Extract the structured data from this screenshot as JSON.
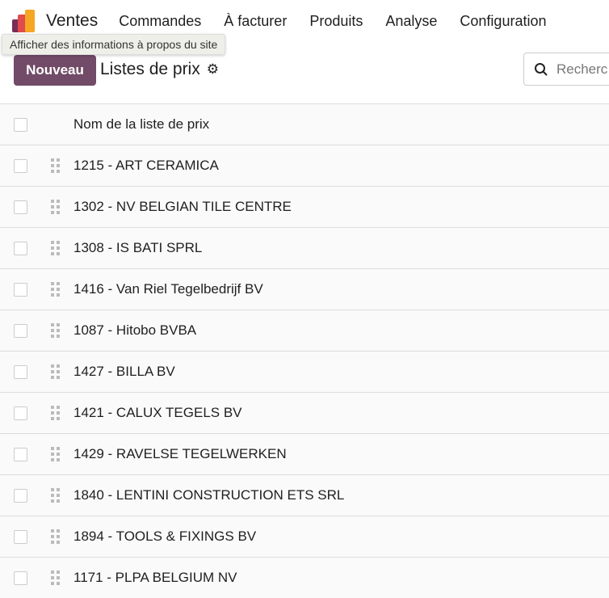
{
  "nav": {
    "app": "Ventes",
    "items": [
      "Commandes",
      "À facturer",
      "Produits",
      "Analyse",
      "Configuration"
    ],
    "logo_colors": [
      "#7a2d57",
      "#e14b4b",
      "#f5a623"
    ]
  },
  "tooltip": "Afficher des informations à propos du site",
  "control": {
    "new_label": "Nouveau",
    "title": "Listes de prix",
    "search_placeholder": "Recherc"
  },
  "list": {
    "column": "Nom de la liste de prix",
    "rows": [
      "1215 - ART CERAMICA",
      "1302 - NV BELGIAN TILE CENTRE",
      "1308 - IS BATI SPRL",
      "1416 - Van Riel Tegelbedrijf BV",
      "1087 - Hitobo BVBA",
      "1427 - BILLA BV",
      "1421 - CALUX TEGELS BV",
      "1429 - RAVELSE TEGELWERKEN",
      "1840 - LENTINI CONSTRUCTION ETS SRL",
      "1894 - TOOLS & FIXINGS BV",
      "1171 - PLPA BELGIUM NV"
    ]
  }
}
